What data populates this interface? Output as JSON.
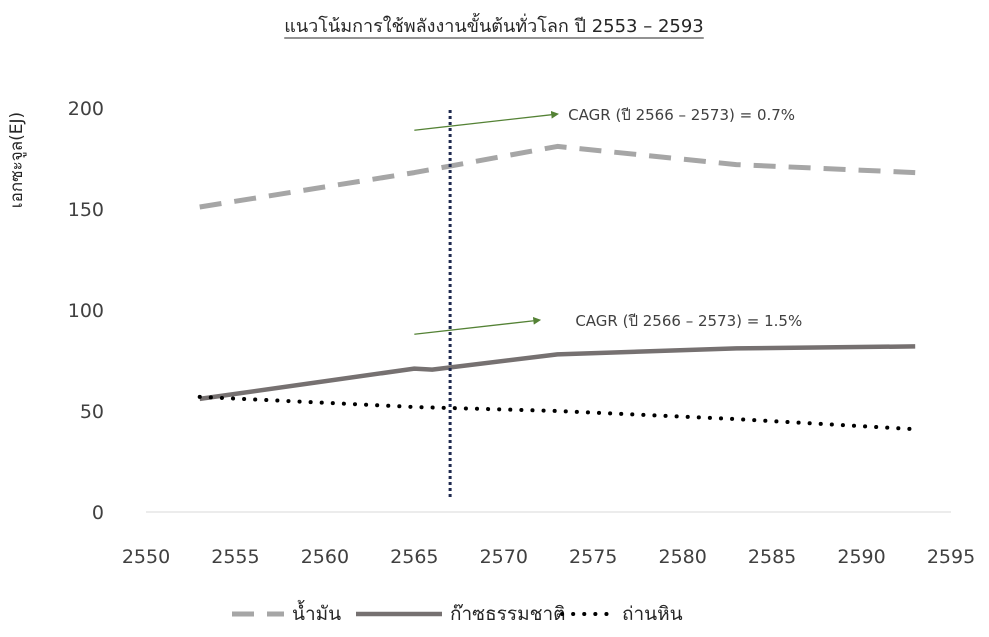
{
  "chart_data": {
    "type": "line",
    "title": "แนวโน้มการใช้พลังงานขั้นต้นทั่วโลก ปี 2553 – 2593",
    "ylabel": "เอกซะจูล(EJ)",
    "xlabel": "",
    "xlim": [
      2550,
      2595
    ],
    "ylim": [
      0,
      200
    ],
    "x_ticks": [
      2550,
      2555,
      2560,
      2565,
      2570,
      2575,
      2580,
      2585,
      2590,
      2595
    ],
    "y_ticks": [
      0,
      50,
      100,
      150,
      200
    ],
    "grid": false,
    "legend_position": "bottom",
    "series": [
      {
        "name": "น้ำมัน",
        "style": "dashed",
        "color": "#A6A6A6",
        "x": [
          2553,
          2565,
          2573,
          2583,
          2593
        ],
        "y": [
          151,
          168,
          181,
          172,
          168
        ]
      },
      {
        "name": "ก๊าซธรรมชาติ",
        "style": "solid",
        "color": "#767171",
        "x": [
          2553,
          2565,
          2566,
          2573,
          2583,
          2593
        ],
        "y": [
          56,
          71,
          70.5,
          78,
          81,
          82
        ]
      },
      {
        "name": "ถ่านหิน",
        "style": "dotted",
        "color": "#000000",
        "x": [
          2553,
          2565,
          2573,
          2583,
          2593
        ],
        "y": [
          57,
          52,
          50,
          46,
          41
        ]
      }
    ],
    "vertical_marker": {
      "x": 2567,
      "color": "#1F2A4F",
      "style": "dotted"
    },
    "annotations": [
      {
        "text": "CAGR (ปี 2566 – 2573) = 0.7%",
        "arrow_from": [
          2565,
          189
        ],
        "arrow_to": [
          2573,
          197
        ],
        "text_at": [
          2573.6,
          197
        ],
        "color": "#548235"
      },
      {
        "text": "CAGR (ปี 2566 – 2573) = 1.5%",
        "arrow_from": [
          2565,
          88
        ],
        "arrow_to": [
          2572,
          95
        ],
        "text_at": [
          2574,
          95
        ],
        "color": "#548235"
      }
    ]
  }
}
